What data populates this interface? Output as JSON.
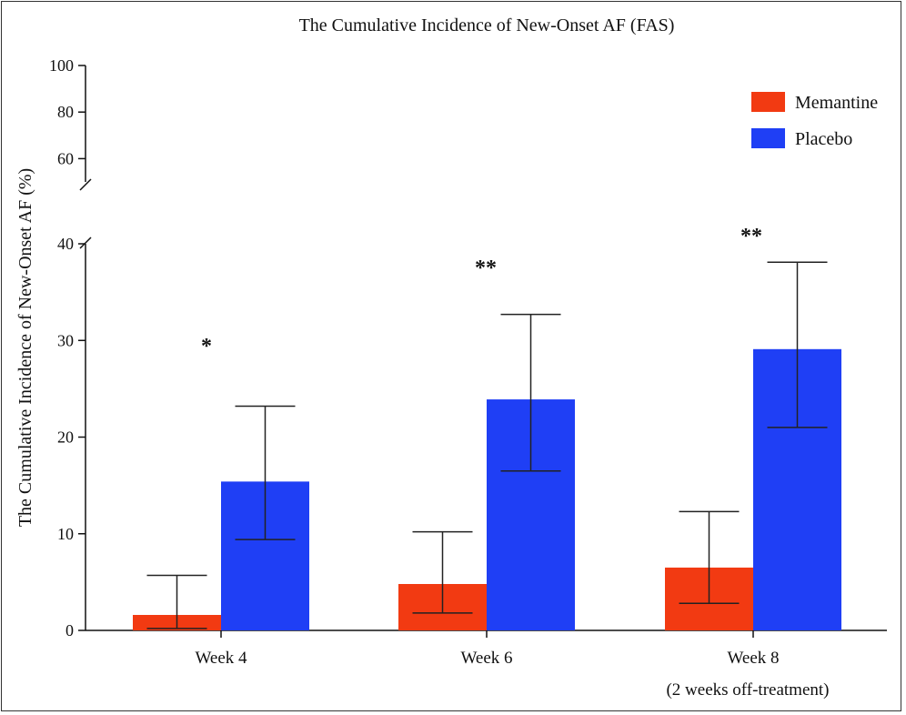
{
  "chart_data": {
    "type": "bar",
    "title": "The Cumulative Incidence of New-Onset AF (FAS)",
    "xlabel": "",
    "ylabel": "The Cumulative Incidence of New-Onset AF (%)",
    "categories": [
      "Week 4",
      "Week 6",
      "Week 8"
    ],
    "category_sublabels": [
      "",
      "",
      "(2 weeks off-treatment)"
    ],
    "series": [
      {
        "name": "Memantine",
        "color": "#f23a12",
        "values": [
          1.6,
          4.8,
          6.5
        ],
        "ci_lower": [
          0.2,
          1.8,
          2.8
        ],
        "ci_upper": [
          5.7,
          10.2,
          12.3
        ]
      },
      {
        "name": "Placebo",
        "color": "#1f3ff5",
        "values": [
          15.4,
          23.9,
          29.1
        ],
        "ci_lower": [
          9.4,
          16.5,
          21.0
        ],
        "ci_upper": [
          23.2,
          32.7,
          38.1
        ]
      }
    ],
    "significance": [
      "*",
      "**",
      "**"
    ],
    "ylim_lower": [
      0,
      40
    ],
    "ylim_upper": [
      50,
      100
    ],
    "yticks_lower": [
      0,
      10,
      20,
      30,
      40
    ],
    "yticks_upper": [
      60,
      80,
      100
    ],
    "axis_break": true,
    "legend_position": "top-right",
    "grid": false
  }
}
